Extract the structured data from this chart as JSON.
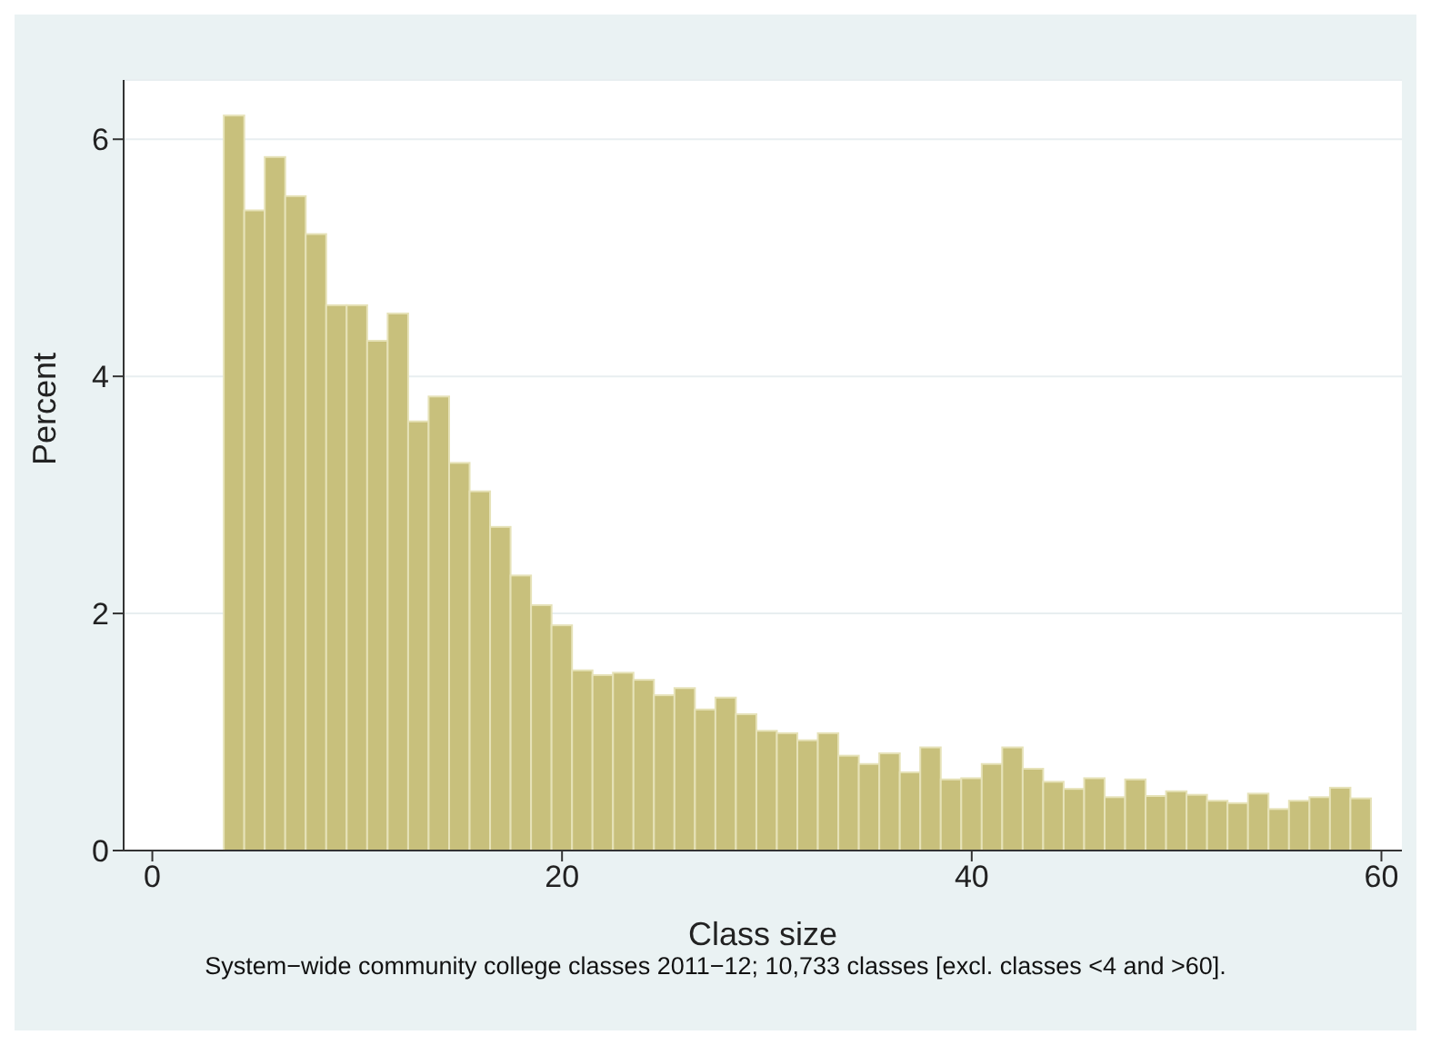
{
  "chart_data": {
    "type": "histogram",
    "xlabel": "Class size",
    "ylabel": "Percent",
    "annotations": [
      "System−wide community college classes 2011−12; 10,733 classes [excl. classes <4 and >60]."
    ],
    "bins": [
      3.5,
      4.5,
      5.5,
      6.5,
      7.5,
      8.5,
      9.5,
      10.5,
      11.5,
      12.5,
      13.5,
      14.5,
      15.5,
      16.5,
      17.5,
      18.5,
      19.5,
      20.5,
      21.5,
      22.5,
      23.5,
      24.5,
      25.5,
      26.5,
      27.5,
      28.5,
      29.5,
      30.5,
      31.5,
      32.5,
      33.5,
      34.5,
      35.5,
      36.5,
      37.5,
      38.5,
      39.5,
      40.5,
      41.5,
      42.5,
      43.5,
      44.5,
      45.5,
      46.5,
      47.5,
      48.5,
      49.5,
      50.5,
      51.5,
      52.5,
      53.5,
      54.5,
      55.5,
      56.5,
      57.5,
      58.5,
      59.5
    ],
    "values": [
      6.2,
      5.4,
      5.85,
      5.52,
      5.2,
      4.6,
      4.6,
      4.3,
      4.53,
      3.62,
      3.83,
      3.27,
      3.03,
      2.73,
      2.32,
      2.07,
      1.9,
      1.52,
      1.48,
      1.5,
      1.44,
      1.31,
      1.37,
      1.19,
      1.29,
      1.15,
      1.01,
      0.99,
      0.93,
      0.99,
      0.8,
      0.73,
      0.82,
      0.66,
      0.87,
      0.6,
      0.61,
      0.73,
      0.87,
      0.69,
      0.58,
      0.52,
      0.61,
      0.45,
      0.6,
      0.46,
      0.5,
      0.47,
      0.42,
      0.4,
      0.48,
      0.35,
      0.42,
      0.45,
      0.53,
      0.44
    ],
    "color": "#c8c07c",
    "xlim": [
      -1.4,
      61
    ],
    "ylim": [
      0,
      6.5
    ],
    "xticks": [
      0,
      20,
      40,
      60
    ],
    "yticks": [
      0,
      2,
      4,
      6
    ],
    "grid": "y"
  }
}
